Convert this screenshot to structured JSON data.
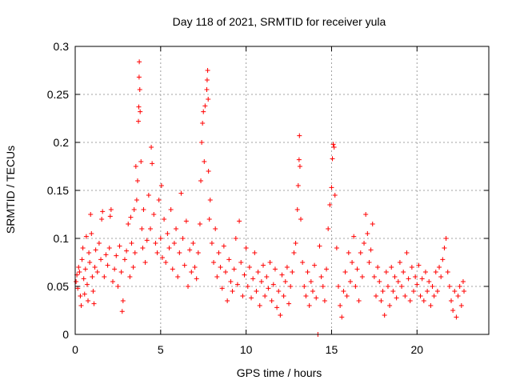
{
  "chart_data": {
    "type": "scatter",
    "title": "Day 118 of 2021, SRMTID for receiver yula",
    "xlabel": "GPS time / hours",
    "ylabel": "SRMTID / TECUs",
    "xlim": [
      0,
      24.2
    ],
    "ylim": [
      0,
      0.3
    ],
    "xticks": [
      0,
      5,
      10,
      15,
      20
    ],
    "xtick_labels": [
      "0",
      "5",
      "10",
      "15",
      "20"
    ],
    "yticks": [
      0,
      0.05,
      0.1,
      0.15,
      0.2,
      0.25,
      0.3
    ],
    "ytick_labels": [
      "0",
      "0.05",
      "0.1",
      "0.15",
      "0.2",
      "0.25",
      "0.3"
    ],
    "grid": true,
    "marker": "+",
    "series": [
      {
        "name": "SRMTID",
        "color": "#ff0000",
        "points": [
          [
            0.05,
            0.055
          ],
          [
            0.1,
            0.062
          ],
          [
            0.15,
            0.048
          ],
          [
            0.2,
            0.07
          ],
          [
            0.25,
            0.065
          ],
          [
            0.3,
            0.04
          ],
          [
            0.35,
            0.03
          ],
          [
            0.4,
            0.078
          ],
          [
            0.45,
            0.09
          ],
          [
            0.5,
            0.058
          ],
          [
            0.55,
            0.042
          ],
          [
            0.6,
            0.068
          ],
          [
            0.65,
            0.102
          ],
          [
            0.7,
            0.052
          ],
          [
            0.75,
            0.035
          ],
          [
            0.8,
            0.085
          ],
          [
            0.85,
            0.075
          ],
          [
            0.9,
            0.125
          ],
          [
            0.95,
            0.105
          ],
          [
            1.0,
            0.06
          ],
          [
            1.05,
            0.045
          ],
          [
            1.1,
            0.032
          ],
          [
            1.15,
            0.07
          ],
          [
            1.2,
            0.088
          ],
          [
            1.3,
            0.065
          ],
          [
            1.4,
            0.095
          ],
          [
            1.5,
            0.078
          ],
          [
            1.55,
            0.12
          ],
          [
            1.6,
            0.128
          ],
          [
            1.7,
            0.06
          ],
          [
            1.8,
            0.083
          ],
          [
            1.9,
            0.072
          ],
          [
            2.0,
            0.09
          ],
          [
            2.05,
            0.123
          ],
          [
            2.1,
            0.13
          ],
          [
            2.2,
            0.055
          ],
          [
            2.3,
            0.068
          ],
          [
            2.4,
            0.082
          ],
          [
            2.5,
            0.05
          ],
          [
            2.6,
            0.092
          ],
          [
            2.7,
            0.065
          ],
          [
            2.75,
            0.024
          ],
          [
            2.8,
            0.035
          ],
          [
            2.9,
            0.078
          ],
          [
            3.0,
            0.087
          ],
          [
            3.1,
            0.115
          ],
          [
            3.2,
            0.06
          ],
          [
            3.25,
            0.122
          ],
          [
            3.3,
            0.095
          ],
          [
            3.4,
            0.07
          ],
          [
            3.45,
            0.13
          ],
          [
            3.5,
            0.085
          ],
          [
            3.55,
            0.175
          ],
          [
            3.6,
            0.14
          ],
          [
            3.65,
            0.16
          ],
          [
            3.7,
            0.222
          ],
          [
            3.72,
            0.237
          ],
          [
            3.74,
            0.268
          ],
          [
            3.75,
            0.284
          ],
          [
            3.78,
            0.255
          ],
          [
            3.8,
            0.232
          ],
          [
            3.85,
            0.18
          ],
          [
            3.9,
            0.11
          ],
          [
            3.95,
            0.09
          ],
          [
            4.0,
            0.13
          ],
          [
            4.1,
            0.075
          ],
          [
            4.2,
            0.098
          ],
          [
            4.3,
            0.145
          ],
          [
            4.4,
            0.11
          ],
          [
            4.45,
            0.195
          ],
          [
            4.5,
            0.178
          ],
          [
            4.6,
            0.125
          ],
          [
            4.7,
            0.095
          ],
          [
            4.8,
            0.085
          ],
          [
            4.9,
            0.14
          ],
          [
            5.0,
            0.1
          ],
          [
            5.05,
            0.155
          ],
          [
            5.1,
            0.08
          ],
          [
            5.2,
            0.12
          ],
          [
            5.3,
            0.075
          ],
          [
            5.4,
            0.105
          ],
          [
            5.5,
            0.09
          ],
          [
            5.6,
            0.13
          ],
          [
            5.7,
            0.068
          ],
          [
            5.8,
            0.095
          ],
          [
            5.9,
            0.11
          ],
          [
            6.0,
            0.06
          ],
          [
            6.1,
            0.085
          ],
          [
            6.2,
            0.147
          ],
          [
            6.3,
            0.1
          ],
          [
            6.4,
            0.072
          ],
          [
            6.5,
            0.118
          ],
          [
            6.6,
            0.05
          ],
          [
            6.7,
            0.088
          ],
          [
            6.8,
            0.065
          ],
          [
            6.9,
            0.095
          ],
          [
            7.0,
            0.07
          ],
          [
            7.1,
            0.058
          ],
          [
            7.2,
            0.085
          ],
          [
            7.3,
            0.115
          ],
          [
            7.35,
            0.16
          ],
          [
            7.4,
            0.2
          ],
          [
            7.45,
            0.22
          ],
          [
            7.5,
            0.232
          ],
          [
            7.55,
            0.18
          ],
          [
            7.6,
            0.238
          ],
          [
            7.7,
            0.255
          ],
          [
            7.72,
            0.265
          ],
          [
            7.75,
            0.275
          ],
          [
            7.78,
            0.245
          ],
          [
            7.8,
            0.17
          ],
          [
            7.85,
            0.12
          ],
          [
            7.9,
            0.14
          ],
          [
            8.0,
            0.095
          ],
          [
            8.1,
            0.075
          ],
          [
            8.2,
            0.11
          ],
          [
            8.3,
            0.06
          ],
          [
            8.4,
            0.085
          ],
          [
            8.5,
            0.07
          ],
          [
            8.6,
            0.048
          ],
          [
            8.7,
            0.092
          ],
          [
            8.8,
            0.065
          ],
          [
            8.9,
            0.035
          ],
          [
            9.0,
            0.078
          ],
          [
            9.1,
            0.055
          ],
          [
            9.2,
            0.045
          ],
          [
            9.3,
            0.068
          ],
          [
            9.4,
            0.1
          ],
          [
            9.5,
            0.052
          ],
          [
            9.6,
            0.118
          ],
          [
            9.7,
            0.075
          ],
          [
            9.8,
            0.04
          ],
          [
            9.9,
            0.062
          ],
          [
            10.0,
            0.09
          ],
          [
            10.1,
            0.05
          ],
          [
            10.2,
            0.07
          ],
          [
            10.3,
            0.038
          ],
          [
            10.4,
            0.058
          ],
          [
            10.5,
            0.085
          ],
          [
            10.6,
            0.045
          ],
          [
            10.7,
            0.065
          ],
          [
            10.8,
            0.03
          ],
          [
            10.9,
            0.055
          ],
          [
            11.0,
            0.072
          ],
          [
            11.1,
            0.04
          ],
          [
            11.2,
            0.06
          ],
          [
            11.3,
            0.048
          ],
          [
            11.4,
            0.075
          ],
          [
            11.5,
            0.035
          ],
          [
            11.6,
            0.052
          ],
          [
            11.7,
            0.068
          ],
          [
            11.8,
            0.028
          ],
          [
            11.9,
            0.045
          ],
          [
            12.0,
            0.02
          ],
          [
            12.1,
            0.062
          ],
          [
            12.2,
            0.04
          ],
          [
            12.3,
            0.055
          ],
          [
            12.4,
            0.07
          ],
          [
            12.5,
            0.032
          ],
          [
            12.6,
            0.05
          ],
          [
            12.7,
            0.065
          ],
          [
            12.8,
            0.085
          ],
          [
            12.9,
            0.095
          ],
          [
            13.0,
            0.13
          ],
          [
            13.05,
            0.155
          ],
          [
            13.1,
            0.182
          ],
          [
            13.12,
            0.207
          ],
          [
            13.15,
            0.175
          ],
          [
            13.2,
            0.12
          ],
          [
            13.3,
            0.075
          ],
          [
            13.4,
            0.05
          ],
          [
            13.5,
            0.04
          ],
          [
            13.6,
            0.065
          ],
          [
            13.7,
            0.03
          ],
          [
            13.8,
            0.055
          ],
          [
            13.9,
            0.045
          ],
          [
            14.0,
            0.072
          ],
          [
            14.1,
            0.038
          ],
          [
            14.2,
            0.0
          ],
          [
            14.3,
            0.092
          ],
          [
            14.4,
            0.06
          ],
          [
            14.5,
            0.05
          ],
          [
            14.6,
            0.035
          ],
          [
            14.7,
            0.068
          ],
          [
            14.8,
            0.11
          ],
          [
            14.9,
            0.135
          ],
          [
            15.0,
            0.153
          ],
          [
            15.05,
            0.183
          ],
          [
            15.1,
            0.198
          ],
          [
            15.15,
            0.195
          ],
          [
            15.2,
            0.145
          ],
          [
            15.3,
            0.09
          ],
          [
            15.4,
            0.05
          ],
          [
            15.5,
            0.03
          ],
          [
            15.6,
            0.018
          ],
          [
            15.7,
            0.045
          ],
          [
            15.8,
            0.065
          ],
          [
            15.9,
            0.04
          ],
          [
            16.0,
            0.085
          ],
          [
            16.1,
            0.055
          ],
          [
            16.2,
            0.075
          ],
          [
            16.3,
            0.102
          ],
          [
            16.4,
            0.05
          ],
          [
            16.5,
            0.068
          ],
          [
            16.6,
            0.035
          ],
          [
            16.7,
            0.085
          ],
          [
            16.8,
            0.06
          ],
          [
            16.9,
            0.095
          ],
          [
            17.0,
            0.125
          ],
          [
            17.1,
            0.105
          ],
          [
            17.2,
            0.075
          ],
          [
            17.3,
            0.088
          ],
          [
            17.4,
            0.115
          ],
          [
            17.5,
            0.06
          ],
          [
            17.6,
            0.04
          ],
          [
            17.7,
            0.07
          ],
          [
            17.8,
            0.055
          ],
          [
            17.9,
            0.035
          ],
          [
            18.0,
            0.045
          ],
          [
            18.1,
            0.02
          ],
          [
            18.2,
            0.065
          ],
          [
            18.3,
            0.05
          ],
          [
            18.4,
            0.03
          ],
          [
            18.5,
            0.07
          ],
          [
            18.6,
            0.045
          ],
          [
            18.7,
            0.06
          ],
          [
            18.8,
            0.038
          ],
          [
            18.9,
            0.055
          ],
          [
            19.0,
            0.075
          ],
          [
            19.1,
            0.05
          ],
          [
            19.2,
            0.065
          ],
          [
            19.3,
            0.04
          ],
          [
            19.4,
            0.085
          ],
          [
            19.5,
            0.058
          ],
          [
            19.6,
            0.035
          ],
          [
            19.7,
            0.07
          ],
          [
            19.8,
            0.045
          ],
          [
            19.9,
            0.06
          ],
          [
            20.0,
            0.052
          ],
          [
            20.1,
            0.072
          ],
          [
            20.2,
            0.04
          ],
          [
            20.3,
            0.058
          ],
          [
            20.4,
            0.035
          ],
          [
            20.5,
            0.065
          ],
          [
            20.6,
            0.045
          ],
          [
            20.7,
            0.055
          ],
          [
            20.8,
            0.03
          ],
          [
            20.9,
            0.05
          ],
          [
            21.0,
            0.04
          ],
          [
            21.1,
            0.065
          ],
          [
            21.2,
            0.045
          ],
          [
            21.3,
            0.07
          ],
          [
            21.4,
            0.06
          ],
          [
            21.5,
            0.078
          ],
          [
            21.6,
            0.09
          ],
          [
            21.7,
            0.1
          ],
          [
            21.8,
            0.065
          ],
          [
            21.9,
            0.05
          ],
          [
            22.0,
            0.035
          ],
          [
            22.1,
            0.025
          ],
          [
            22.2,
            0.045
          ],
          [
            22.3,
            0.018
          ],
          [
            22.4,
            0.04
          ],
          [
            22.5,
            0.05
          ],
          [
            22.6,
            0.03
          ],
          [
            22.7,
            0.055
          ],
          [
            22.75,
            0.045
          ]
        ]
      }
    ]
  }
}
